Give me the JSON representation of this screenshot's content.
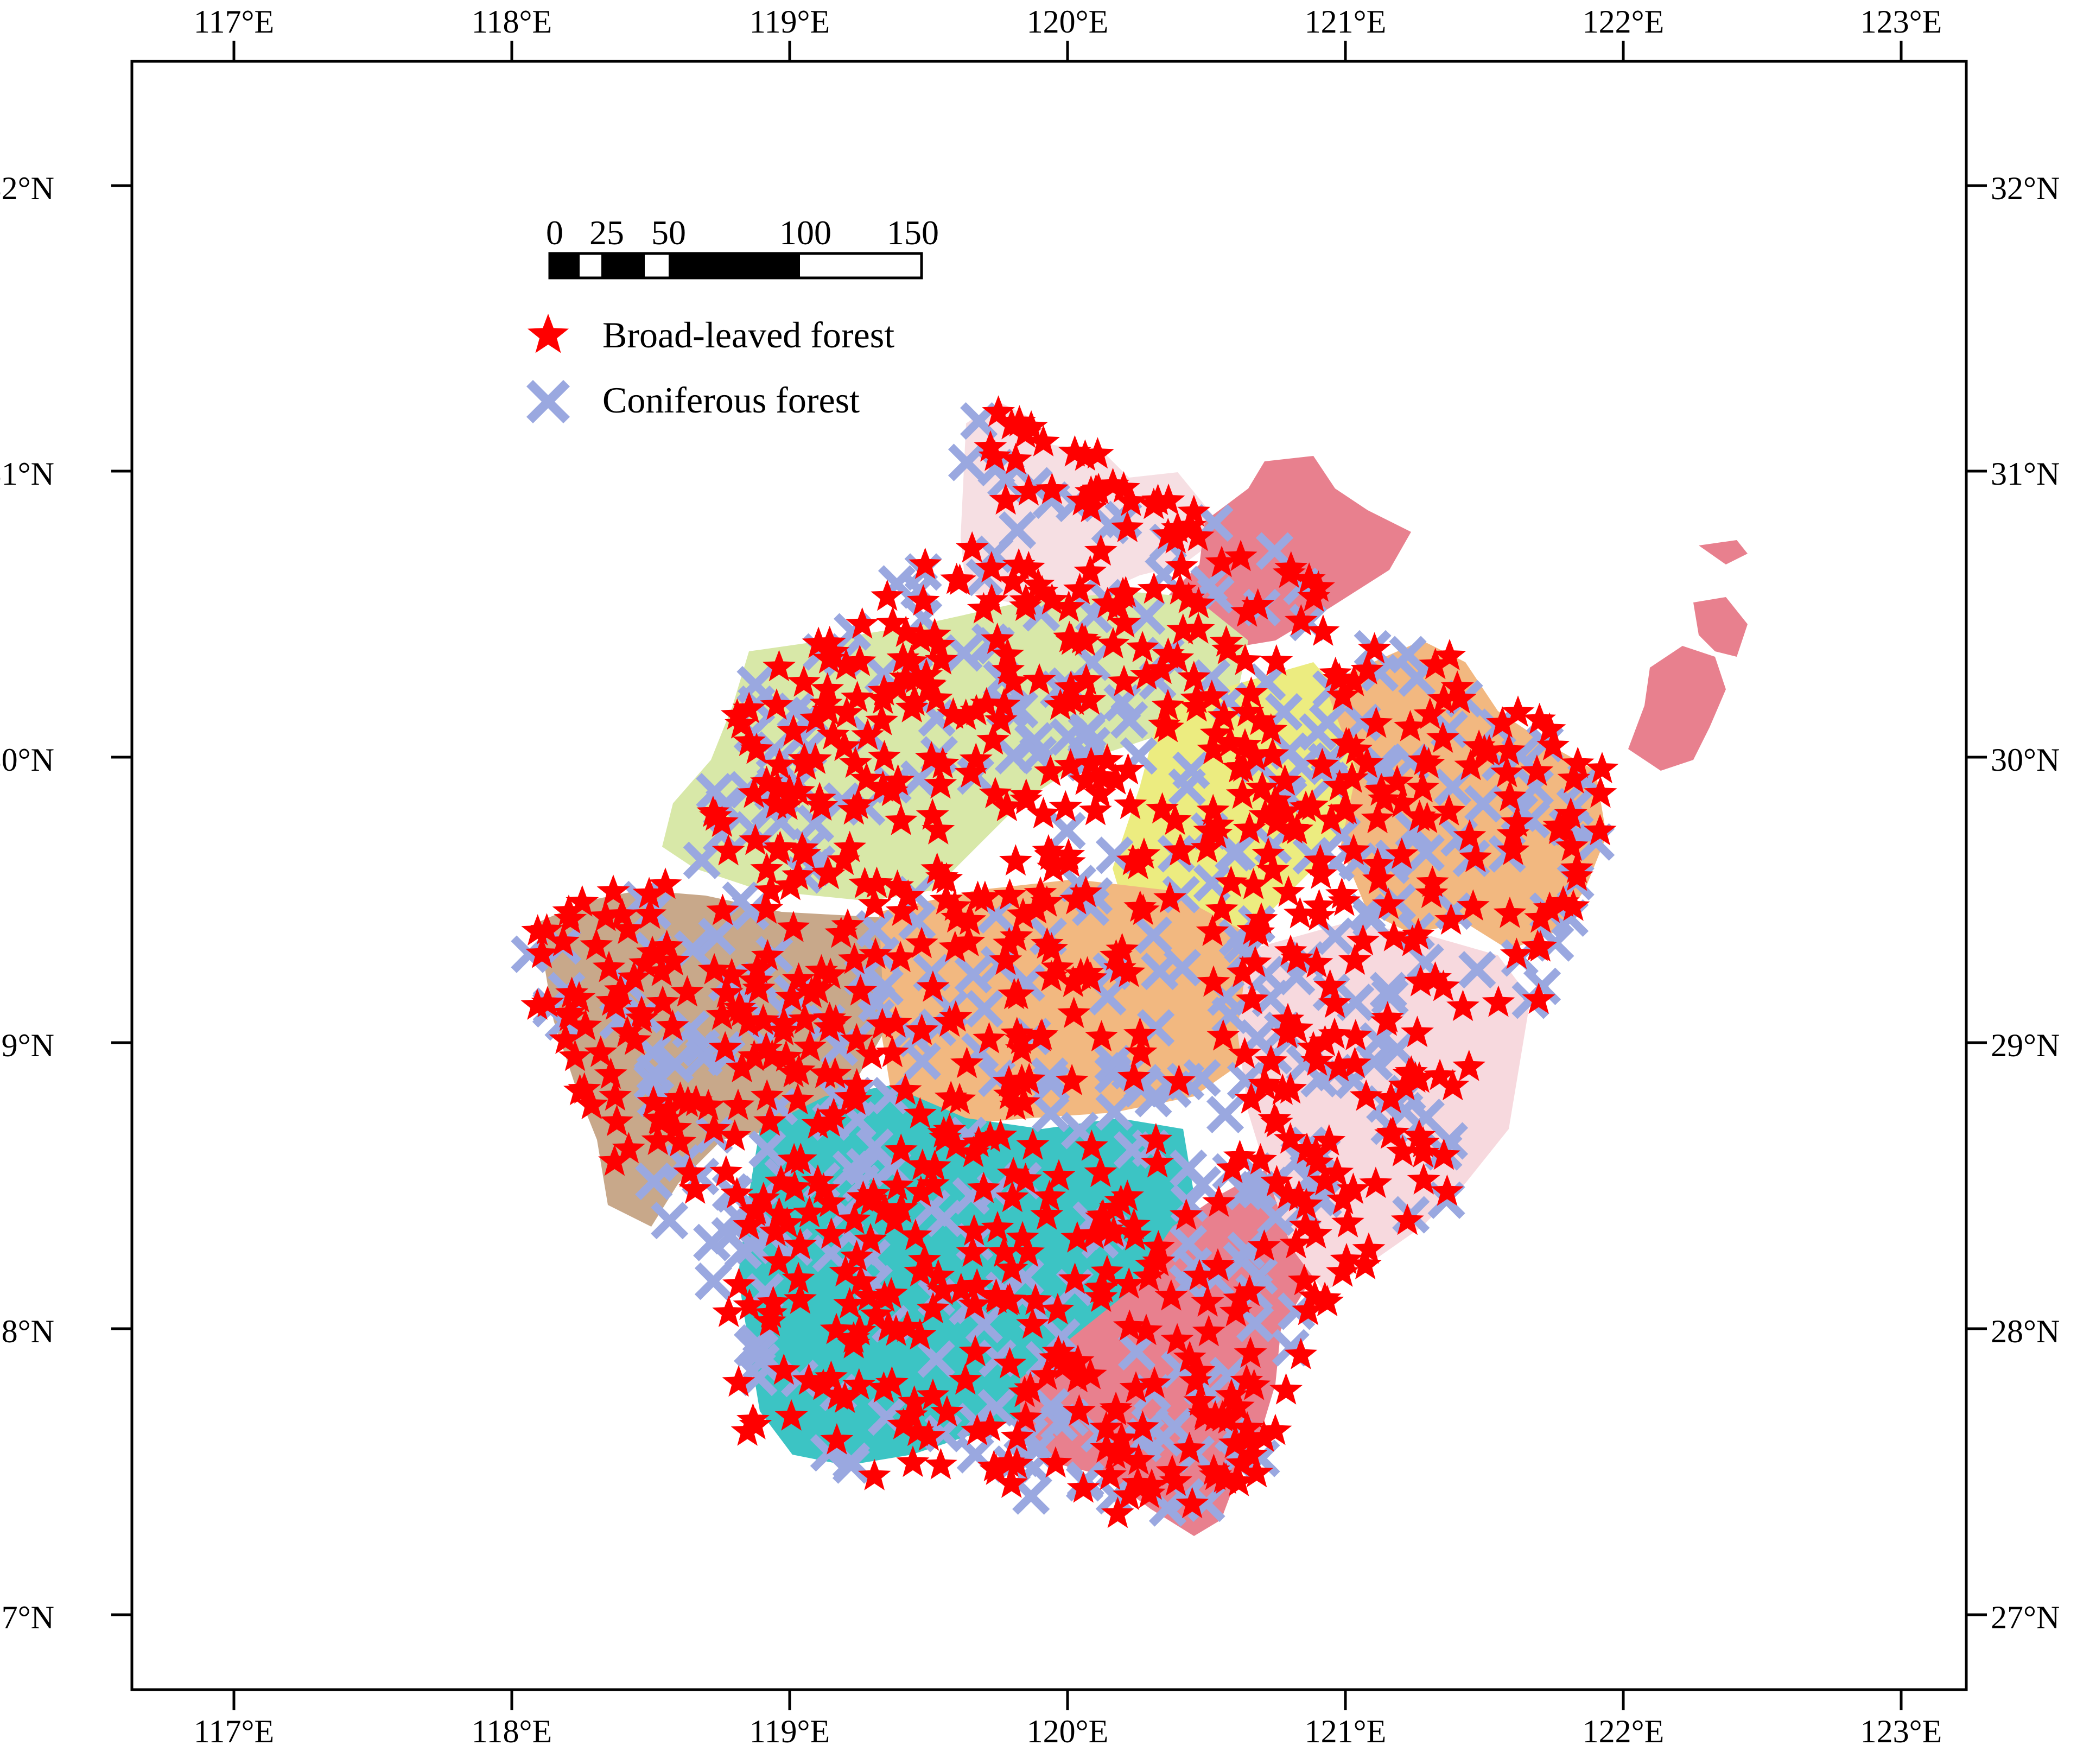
{
  "map": {
    "axes": {
      "longitude_labels": [
        "117°E",
        "118°E",
        "119°E",
        "120°E",
        "121°E",
        "122°E",
        "123°E"
      ],
      "latitude_labels": [
        "27°N",
        "28°N",
        "29°N",
        "30°N",
        "31°N",
        "32°N"
      ]
    },
    "scale_bar": {
      "labels": [
        "0",
        "25",
        "50",
        "100",
        "150"
      ],
      "values": [
        0,
        25,
        50,
        100,
        150
      ]
    },
    "legend": {
      "placement": "top-left",
      "items": [
        {
          "label": "Broad-leaved forest",
          "marker": "star",
          "color": "#ff0000"
        },
        {
          "label": "Coniferous forest",
          "marker": "cross",
          "color": "#9aa8e0"
        }
      ]
    },
    "region_colors": [
      "#f6dfe3",
      "#e8808e",
      "#d8e8a8",
      "#ecec80",
      "#f2b880",
      "#c8a88a",
      "#3cc4c4",
      "#f7d9de"
    ]
  }
}
